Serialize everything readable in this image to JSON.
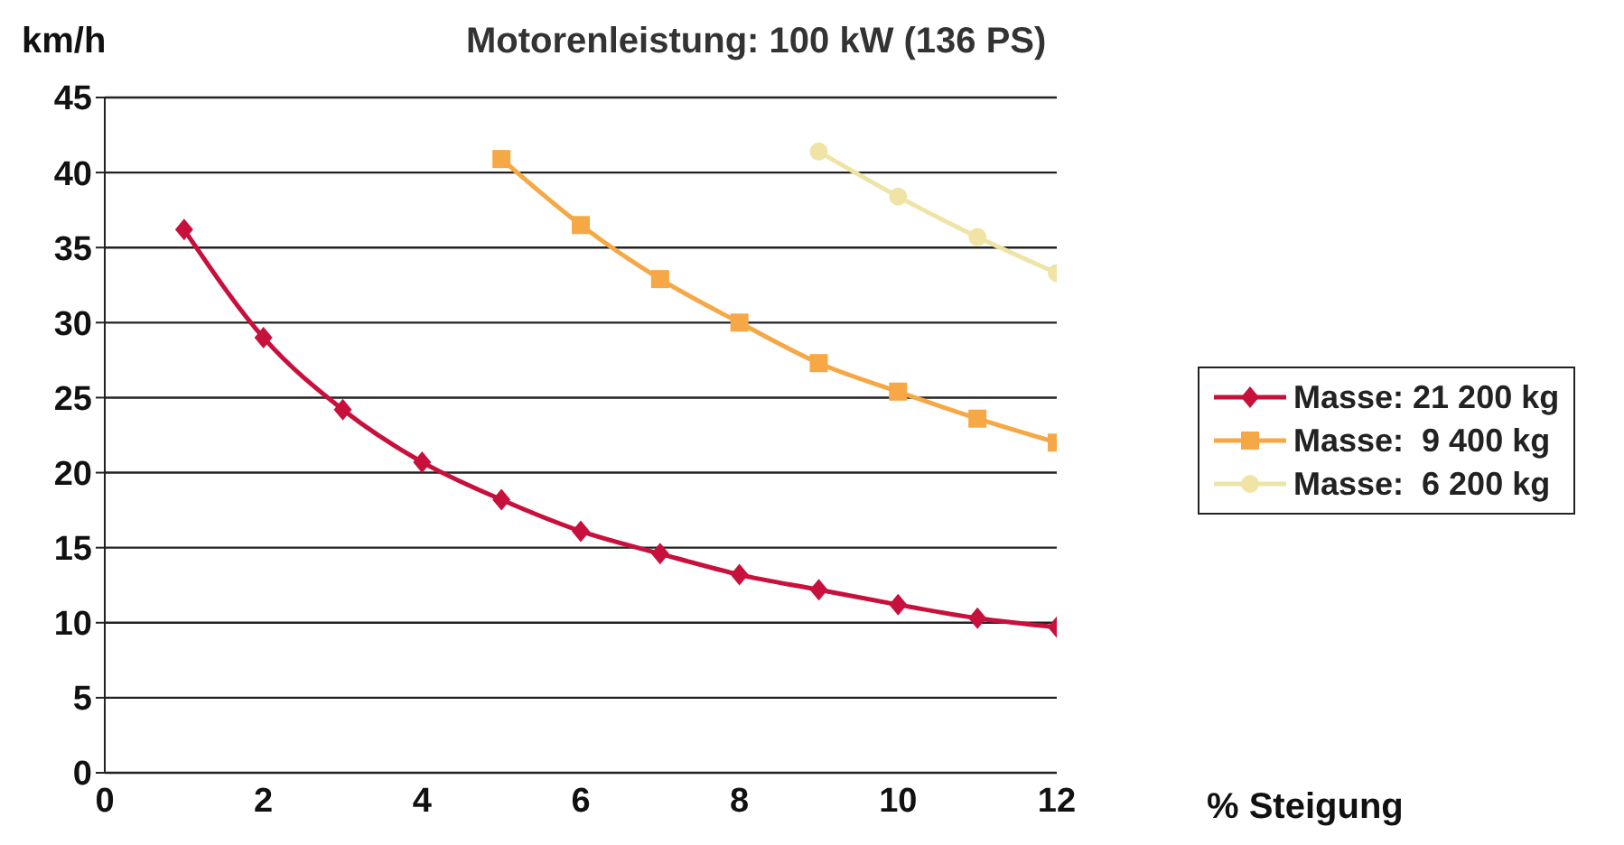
{
  "chart_data": {
    "type": "line",
    "title": "Motorenleistung: 100 kW (136 PS)",
    "xlabel": "% Steigung",
    "ylabel": "km/h",
    "xlim": [
      0,
      12
    ],
    "xticks": [
      0,
      2,
      4,
      6,
      8,
      10,
      12
    ],
    "ylim": [
      0,
      45
    ],
    "yticks": [
      0,
      5,
      10,
      15,
      20,
      25,
      30,
      35,
      40,
      45
    ],
    "grid": "y",
    "legend": "right",
    "line_style": "solid",
    "series": [
      {
        "name": "Masse: 21 200 kg",
        "color": "#c8103c",
        "marker": "diamond",
        "x": [
          1,
          2,
          3,
          4,
          5,
          6,
          7,
          8,
          9,
          10,
          11,
          12
        ],
        "values": [
          36.2,
          29.0,
          24.2,
          20.7,
          18.2,
          16.1,
          14.6,
          13.2,
          12.2,
          11.2,
          10.3,
          9.7
        ]
      },
      {
        "name": "Masse:  9 400 kg",
        "color": "#f5a845",
        "marker": "square",
        "x": [
          5,
          6,
          7,
          8,
          9,
          10,
          11,
          12
        ],
        "values": [
          40.9,
          36.5,
          32.9,
          30.0,
          27.3,
          25.4,
          23.6,
          22.0
        ]
      },
      {
        "name": "Masse:  6 200 kg",
        "color": "#efe4a6",
        "marker": "circle",
        "x": [
          9,
          10,
          11,
          12
        ],
        "values": [
          41.4,
          38.4,
          35.7,
          33.3
        ]
      }
    ]
  }
}
